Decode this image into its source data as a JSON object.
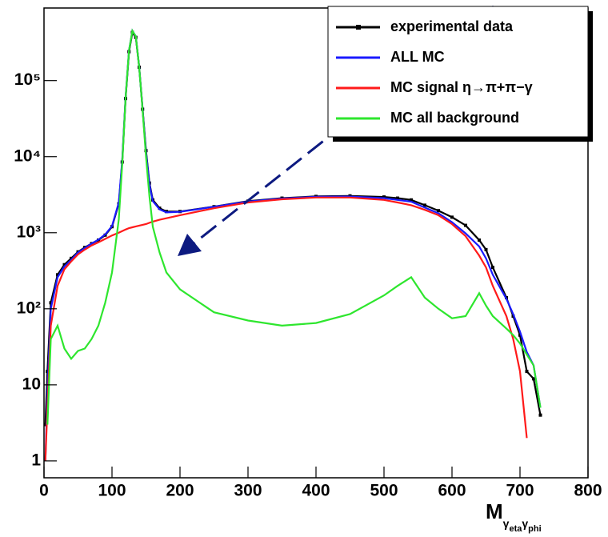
{
  "chart_data": {
    "type": "line",
    "log_y": true,
    "x_label_parts": [
      "M",
      "γ",
      "eta",
      "γ",
      "phi"
    ],
    "x": [
      2,
      5,
      10,
      20,
      30,
      40,
      50,
      60,
      70,
      80,
      90,
      100,
      110,
      115,
      120,
      125,
      130,
      135,
      140,
      145,
      150,
      155,
      160,
      170,
      180,
      200,
      250,
      300,
      350,
      400,
      450,
      500,
      520,
      540,
      560,
      580,
      600,
      620,
      640,
      650,
      660,
      680,
      690,
      700,
      710,
      720,
      730,
      740
    ],
    "series": [
      {
        "name": "experimental data",
        "color": "#000000",
        "markers": true,
        "values": [
          3,
          15,
          120,
          280,
          380,
          460,
          560,
          640,
          720,
          800,
          930,
          1200,
          2400,
          8500,
          58000,
          240000,
          430000,
          370000,
          150000,
          42000,
          12000,
          4500,
          2700,
          2100,
          1900,
          1900,
          2200,
          2600,
          2850,
          3000,
          3050,
          2950,
          2850,
          2700,
          2300,
          1950,
          1600,
          1250,
          800,
          600,
          350,
          140,
          80,
          45,
          15,
          12,
          4,
          null
        ]
      },
      {
        "name": "ALL MC",
        "color": "#1a1aff",
        "markers": false,
        "values": [
          1,
          8,
          100,
          260,
          360,
          440,
          550,
          630,
          720,
          810,
          950,
          1220,
          2500,
          9000,
          61000,
          251000,
          451000,
          381000,
          151000,
          41000,
          11300,
          4300,
          2600,
          2030,
          1850,
          1880,
          2190,
          2570,
          2810,
          2965,
          2985,
          2850,
          2700,
          2560,
          2140,
          1800,
          1375,
          980,
          660,
          460,
          280,
          135,
          85,
          50,
          27,
          18,
          5,
          null
        ]
      },
      {
        "name": "MC signal η→π+π−γ",
        "color": "#ff1a1a",
        "markers": false,
        "values": [
          1,
          5,
          60,
          200,
          330,
          420,
          520,
          600,
          680,
          750,
          830,
          920,
          1000,
          1050,
          1100,
          1150,
          1180,
          1210,
          1240,
          1270,
          1300,
          1350,
          1400,
          1480,
          1550,
          1700,
          2100,
          2500,
          2750,
          2900,
          2900,
          2700,
          2500,
          2300,
          2000,
          1700,
          1300,
          900,
          500,
          350,
          200,
          80,
          40,
          15,
          2,
          null,
          null,
          null
        ]
      },
      {
        "name": "MC all background",
        "color": "#2ee62e",
        "markers": false,
        "values": [
          null,
          3,
          40,
          60,
          30,
          22,
          28,
          30,
          40,
          60,
          120,
          300,
          1500,
          8000,
          60000,
          250000,
          450000,
          380000,
          150000,
          40000,
          10000,
          3000,
          1200,
          550,
          300,
          180,
          90,
          70,
          60,
          65,
          85,
          150,
          200,
          260,
          140,
          100,
          75,
          80,
          160,
          110,
          80,
          55,
          45,
          35,
          25,
          18,
          5,
          null
        ]
      }
    ],
    "xlim": [
      0,
      800
    ],
    "xticks": [
      0,
      100,
      200,
      300,
      400,
      500,
      600,
      700,
      800
    ],
    "ylim": [
      0.6,
      900000
    ],
    "yticks": [
      1,
      10,
      {
        "value": 100,
        "label": "10²"
      },
      {
        "value": 1000,
        "label": "10³"
      },
      {
        "value": 10000,
        "label": "10⁴"
      },
      {
        "value": 100000,
        "label": "10⁵"
      }
    ],
    "legend": "top-right"
  }
}
